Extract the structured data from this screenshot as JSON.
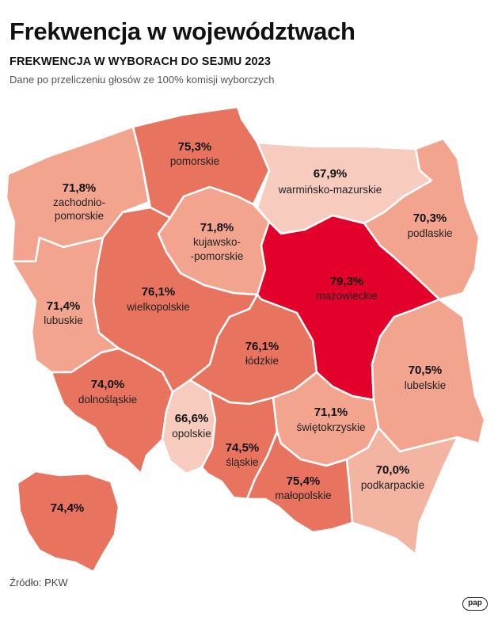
{
  "title": "Frekwencja w województwach",
  "subtitle": "FREKWENCJA W WYBORACH DO SEJMU 2023",
  "note": "Dane po przeliczeniu głosów ze 100% komisji wyborczych",
  "source": "Źródło: PKW",
  "logo": "pap",
  "colors": {
    "darkest": "#e3002a",
    "dark": "#e8735f",
    "medium": "#f2a48f",
    "light": "#f4b4a2",
    "lightest": "#f7cbbd"
  },
  "regions": {
    "zachodniopomorskie": {
      "value": "71,8%",
      "name_lines": [
        "zachodnio-",
        "pomorskie"
      ]
    },
    "pomorskie": {
      "value": "75,3%",
      "name_lines": [
        "pomorskie"
      ]
    },
    "warminsko": {
      "value": "67,9%",
      "name_lines": [
        "warmińsko-mazurskie"
      ]
    },
    "podlaskie": {
      "value": "70,3%",
      "name_lines": [
        "podlaskie"
      ]
    },
    "kujawsko": {
      "value": "71,8%",
      "name_lines": [
        "kujawsko-",
        "-pomorskie"
      ]
    },
    "mazowieckie": {
      "value": "79,3%",
      "name_lines": [
        "mazowieckie"
      ]
    },
    "lubuskie": {
      "value": "71,4%",
      "name_lines": [
        "lubuskie"
      ]
    },
    "wielkopolskie": {
      "value": "76,1%",
      "name_lines": [
        "wielkopolskie"
      ]
    },
    "lodzkie": {
      "value": "76,1%",
      "name_lines": [
        "łódzkie"
      ]
    },
    "lubelskie": {
      "value": "70,5%",
      "name_lines": [
        "lubelskie"
      ]
    },
    "dolnoslaskie": {
      "value": "74,0%",
      "name_lines": [
        "dolnośląskie"
      ]
    },
    "opolskie": {
      "value": "66,6%",
      "name_lines": [
        "opolskie"
      ]
    },
    "slaskie": {
      "value": "74,5%",
      "name_lines": [
        "śląskie"
      ]
    },
    "swietokrzyskie": {
      "value": "71,1%",
      "name_lines": [
        "świętokrzyskie"
      ]
    },
    "malopolskie": {
      "value": "75,4%",
      "name_lines": [
        "małopolskie"
      ]
    },
    "podkarpackie": {
      "value": "70,0%",
      "name_lines": [
        "podkarpackie"
      ]
    }
  },
  "legend_inset": {
    "value": "74,4%"
  }
}
